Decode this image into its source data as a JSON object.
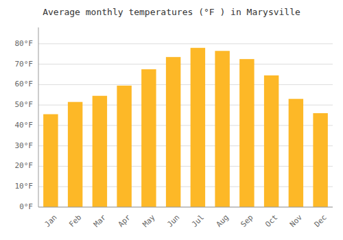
{
  "chart_data": {
    "type": "bar",
    "title": "Average monthly temperatures (°F ) in Marysville",
    "categories": [
      "Jan",
      "Feb",
      "Mar",
      "Apr",
      "May",
      "Jun",
      "Jul",
      "Aug",
      "Sep",
      "Oct",
      "Nov",
      "Dec"
    ],
    "values": [
      45.5,
      51.5,
      54.5,
      59.5,
      67.5,
      73.5,
      78.0,
      76.5,
      72.5,
      64.5,
      53.0,
      46.0
    ],
    "color": "#FDB827",
    "ylim": [
      0,
      88
    ],
    "yticks": [
      {
        "value": 0,
        "label": "0°F"
      },
      {
        "value": 10,
        "label": "10°F"
      },
      {
        "value": 20,
        "label": "20°F"
      },
      {
        "value": 30,
        "label": "30°F"
      },
      {
        "value": 40,
        "label": "40°F"
      },
      {
        "value": 50,
        "label": "50°F"
      },
      {
        "value": 60,
        "label": "60°F"
      },
      {
        "value": 70,
        "label": "70°F"
      },
      {
        "value": 80,
        "label": "80°F"
      }
    ],
    "grid": true
  }
}
